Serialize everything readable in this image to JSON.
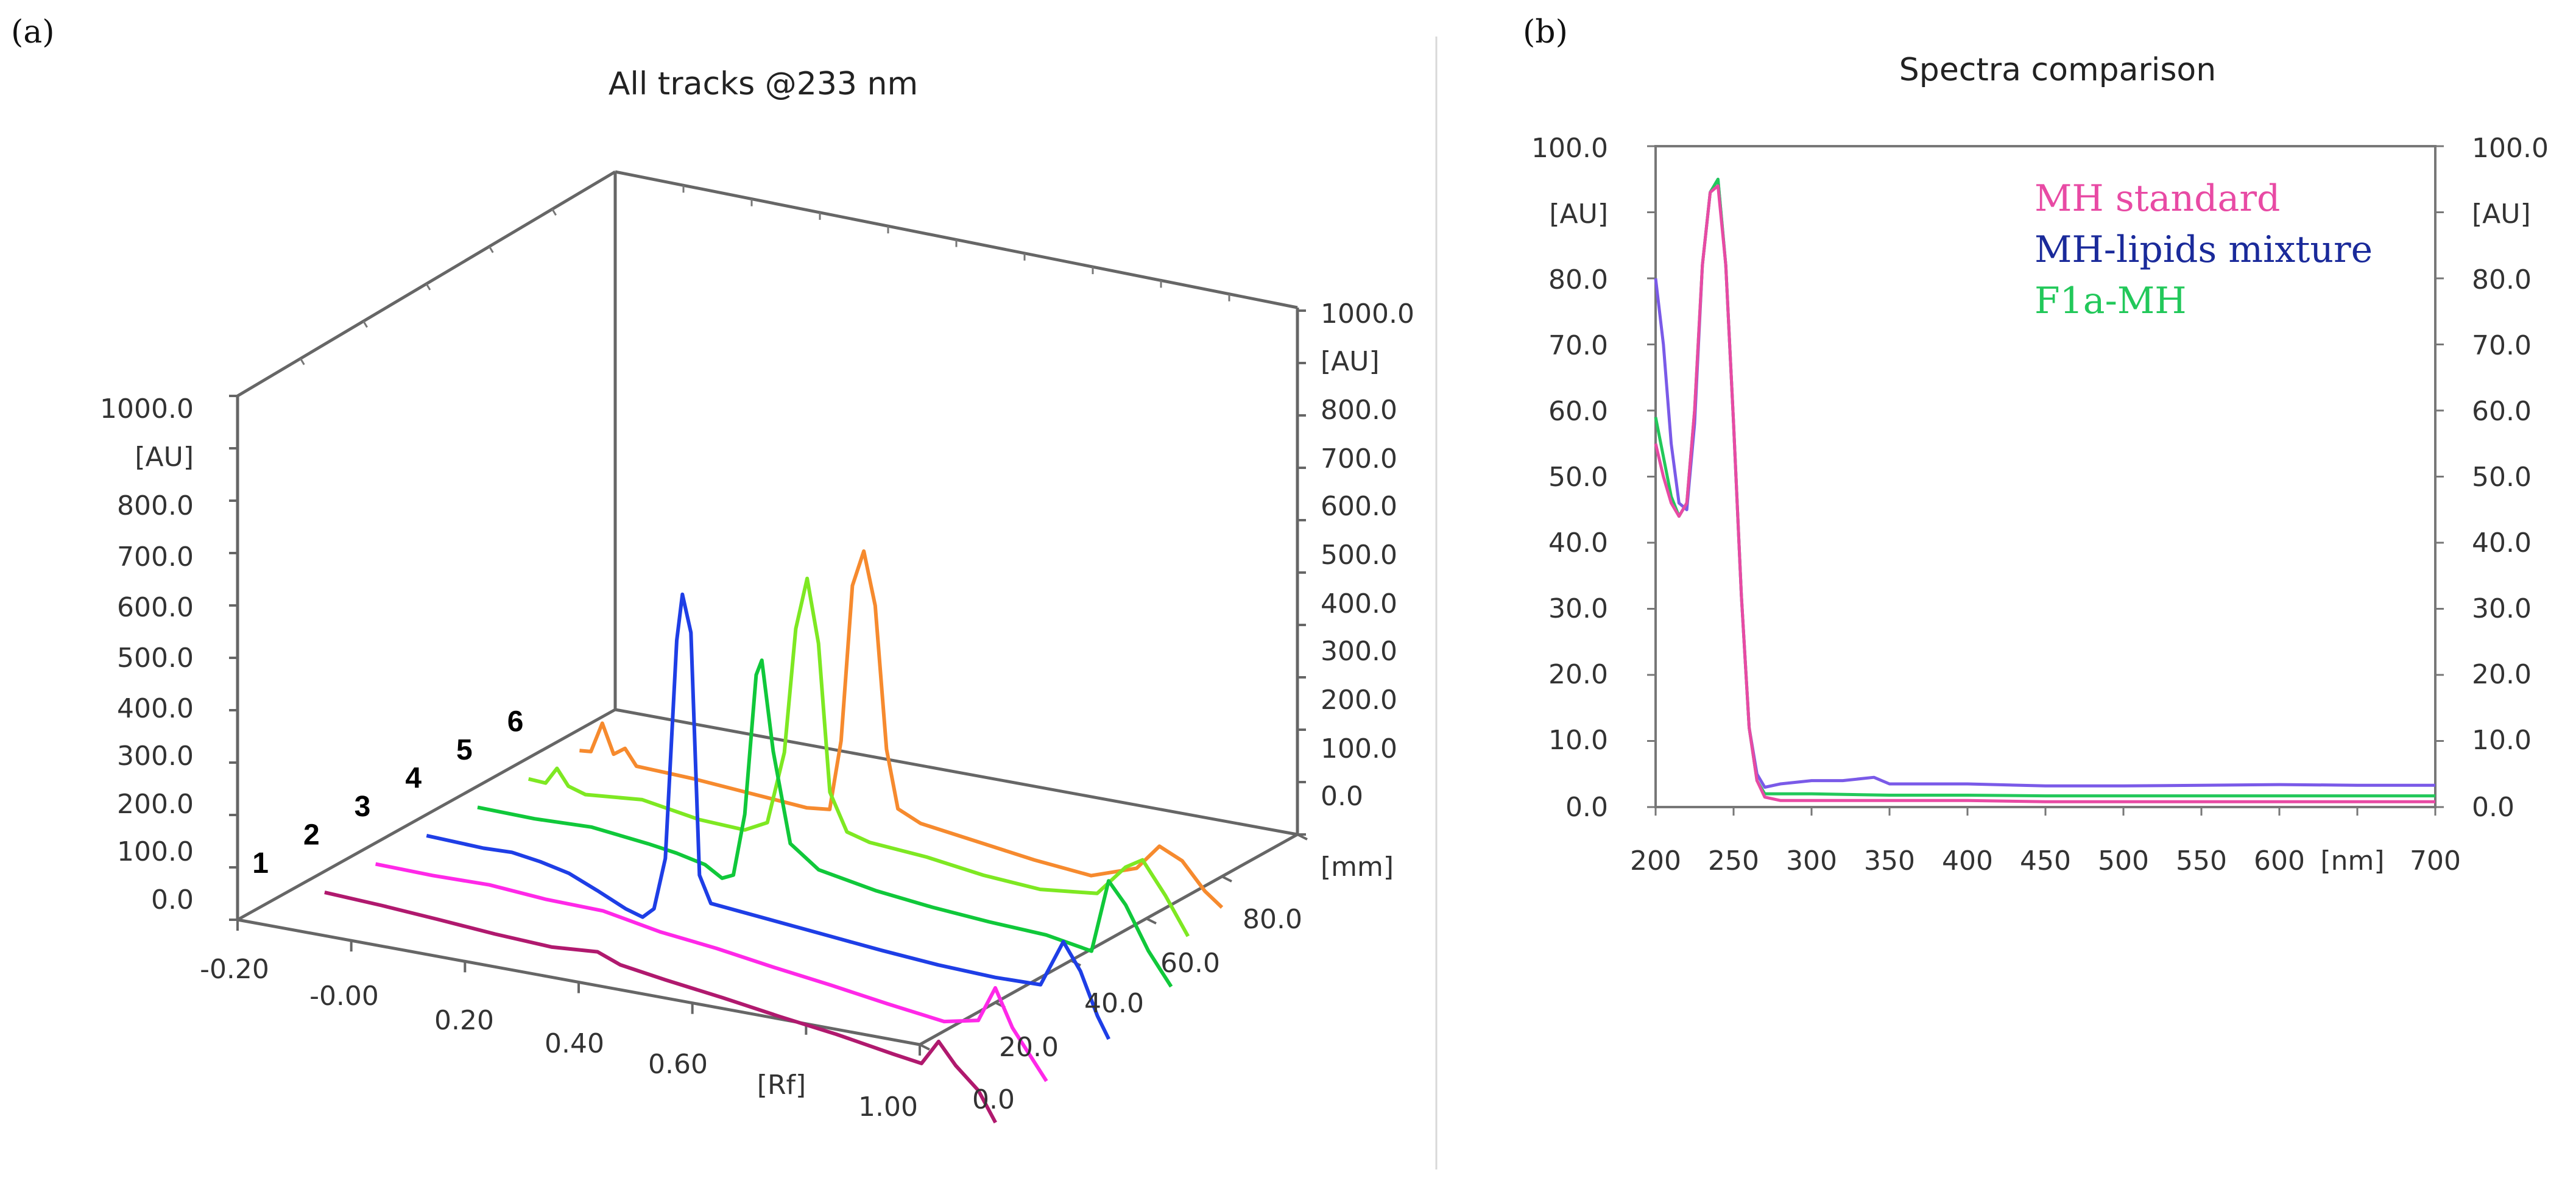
{
  "panel_a": {
    "label": "(a)",
    "chart_data": {
      "type": "line-3d",
      "title": "All tracks @233 nm",
      "rf_ticks": [
        "-0.20",
        "-0.00",
        "0.20",
        "0.40",
        "0.60",
        "1.00"
      ],
      "rf_unit": "[Rf]",
      "rf_range": [
        -0.2,
        1.0
      ],
      "mm_ticks": [
        "0.0",
        "20.0",
        "40.0",
        "60.0",
        "80.0"
      ],
      "mm_unit": "[mm]",
      "mm_range": [
        0,
        100
      ],
      "au_left_ticks": [
        "1000.0",
        "[AU]",
        "800.0",
        "700.0",
        "600.0",
        "500.0",
        "400.0",
        "300.0",
        "200.0",
        "100.0",
        "0.0"
      ],
      "au_right_ticks": [
        "1000.0",
        "[AU]",
        "800.0",
        "700.0",
        "600.0",
        "500.0",
        "400.0",
        "300.0",
        "200.0",
        "100.0",
        "0.0"
      ],
      "au_range": [
        0,
        1000
      ],
      "tracks": [
        {
          "name": "1",
          "color": "#b0196e",
          "points": [
            [
              -0.1,
              40
            ],
            [
              0.0,
              35
            ],
            [
              0.1,
              28
            ],
            [
              0.2,
              20
            ],
            [
              0.3,
              15
            ],
            [
              0.38,
              22
            ],
            [
              0.42,
              5
            ],
            [
              0.5,
              -8
            ],
            [
              0.6,
              -22
            ],
            [
              0.7,
              -38
            ],
            [
              0.8,
              -52
            ],
            [
              0.9,
              -70
            ],
            [
              0.95,
              -78
            ],
            [
              0.98,
              -30
            ],
            [
              1.01,
              -70
            ],
            [
              1.05,
              -110
            ],
            [
              1.08,
              -165
            ]
          ]
        },
        {
          "name": "2",
          "color": "#ff28e8",
          "points": [
            [
              -0.1,
              40
            ],
            [
              0.0,
              38
            ],
            [
              0.1,
              40
            ],
            [
              0.2,
              32
            ],
            [
              0.3,
              30
            ],
            [
              0.4,
              10
            ],
            [
              0.5,
              -2
            ],
            [
              0.6,
              -18
            ],
            [
              0.7,
              -32
            ],
            [
              0.8,
              -48
            ],
            [
              0.9,
              -62
            ],
            [
              0.96,
              -48
            ],
            [
              0.99,
              20
            ],
            [
              1.02,
              -50
            ],
            [
              1.05,
              -95
            ],
            [
              1.08,
              -140
            ]
          ]
        },
        {
          "name": "3",
          "color": "#1e3ee6",
          "points": [
            [
              -0.1,
              40
            ],
            [
              0.0,
              36
            ],
            [
              0.05,
              38
            ],
            [
              0.1,
              30
            ],
            [
              0.15,
              18
            ],
            [
              0.2,
              -5
            ],
            [
              0.25,
              -30
            ],
            [
              0.28,
              -40
            ],
            [
              0.3,
              -20
            ],
            [
              0.32,
              80
            ],
            [
              0.34,
              500
            ],
            [
              0.35,
              590
            ],
            [
              0.365,
              520
            ],
            [
              0.38,
              60
            ],
            [
              0.4,
              10
            ],
            [
              0.5,
              0
            ],
            [
              0.6,
              -10
            ],
            [
              0.7,
              -20
            ],
            [
              0.8,
              -28
            ],
            [
              0.9,
              -32
            ],
            [
              0.98,
              -30
            ],
            [
              1.02,
              60
            ],
            [
              1.05,
              10
            ],
            [
              1.08,
              -70
            ],
            [
              1.1,
              -110
            ]
          ]
        },
        {
          "name": "4",
          "color": "#10c83a",
          "points": [
            [
              -0.1,
              40
            ],
            [
              0.0,
              38
            ],
            [
              0.1,
              42
            ],
            [
              0.2,
              30
            ],
            [
              0.25,
              22
            ],
            [
              0.3,
              10
            ],
            [
              0.33,
              -10
            ],
            [
              0.35,
              0
            ],
            [
              0.37,
              120
            ],
            [
              0.39,
              390
            ],
            [
              0.4,
              420
            ],
            [
              0.42,
              250
            ],
            [
              0.45,
              80
            ],
            [
              0.5,
              40
            ],
            [
              0.6,
              20
            ],
            [
              0.7,
              8
            ],
            [
              0.8,
              0
            ],
            [
              0.9,
              -5
            ],
            [
              0.98,
              -20
            ],
            [
              1.01,
              120
            ],
            [
              1.04,
              80
            ],
            [
              1.08,
              0
            ],
            [
              1.12,
              -60
            ]
          ]
        },
        {
          "name": "5",
          "color": "#7ee822",
          "points": [
            [
              -0.1,
              40
            ],
            [
              -0.07,
              38
            ],
            [
              -0.05,
              70
            ],
            [
              -0.03,
              40
            ],
            [
              0.0,
              30
            ],
            [
              0.1,
              40
            ],
            [
              0.2,
              22
            ],
            [
              0.28,
              18
            ],
            [
              0.32,
              40
            ],
            [
              0.35,
              180
            ],
            [
              0.37,
              420
            ],
            [
              0.39,
              520
            ],
            [
              0.41,
              400
            ],
            [
              0.43,
              120
            ],
            [
              0.46,
              50
            ],
            [
              0.5,
              38
            ],
            [
              0.6,
              30
            ],
            [
              0.7,
              15
            ],
            [
              0.8,
              8
            ],
            [
              0.9,
              20
            ],
            [
              0.95,
              80
            ],
            [
              0.98,
              100
            ],
            [
              1.02,
              40
            ],
            [
              1.06,
              -30
            ]
          ]
        },
        {
          "name": "6",
          "color": "#f68a2e",
          "points": [
            [
              -0.1,
              40
            ],
            [
              -0.08,
              42
            ],
            [
              -0.06,
              100
            ],
            [
              -0.04,
              45
            ],
            [
              -0.02,
              60
            ],
            [
              0.0,
              30
            ],
            [
              0.1,
              26
            ],
            [
              0.2,
              18
            ],
            [
              0.3,
              10
            ],
            [
              0.34,
              15
            ],
            [
              0.36,
              150
            ],
            [
              0.38,
              450
            ],
            [
              0.4,
              520
            ],
            [
              0.42,
              420
            ],
            [
              0.44,
              150
            ],
            [
              0.46,
              40
            ],
            [
              0.5,
              20
            ],
            [
              0.6,
              5
            ],
            [
              0.7,
              -10
            ],
            [
              0.8,
              -20
            ],
            [
              0.88,
              10
            ],
            [
              0.92,
              60
            ],
            [
              0.96,
              40
            ],
            [
              1.0,
              -10
            ],
            [
              1.03,
              -35
            ]
          ]
        }
      ]
    }
  },
  "panel_b": {
    "label": "(b)",
    "chart_data": {
      "type": "line",
      "title": "Spectra comparison",
      "x_ticks": [
        "200",
        "250",
        "300",
        "350",
        "400",
        "450",
        "500",
        "550",
        "600",
        "[nm]",
        "700"
      ],
      "x_range": [
        200,
        700
      ],
      "x_unit": "[nm]",
      "y_left_ticks": [
        "100.0",
        "[AU]",
        "80.0",
        "70.0",
        "60.0",
        "50.0",
        "40.0",
        "30.0",
        "20.0",
        "10.0",
        "0.0"
      ],
      "y_right_ticks": [
        "100.0",
        "[AU]",
        "80.0",
        "70.0",
        "60.0",
        "50.0",
        "40.0",
        "30.0",
        "20.0",
        "10.0",
        "0.0"
      ],
      "y_range": [
        0,
        100
      ],
      "y_unit": "[AU]",
      "series": [
        {
          "name": "MH standard",
          "color": "#e84aa4",
          "points": [
            [
              200,
              55
            ],
            [
              205,
              50
            ],
            [
              210,
              46
            ],
            [
              215,
              44
            ],
            [
              220,
              46
            ],
            [
              225,
              60
            ],
            [
              230,
              82
            ],
            [
              235,
              93
            ],
            [
              240,
              94
            ],
            [
              245,
              82
            ],
            [
              250,
              58
            ],
            [
              255,
              32
            ],
            [
              260,
              12
            ],
            [
              265,
              4
            ],
            [
              270,
              1.5
            ],
            [
              280,
              1
            ],
            [
              300,
              1
            ],
            [
              350,
              1
            ],
            [
              400,
              1
            ],
            [
              450,
              0.8
            ],
            [
              500,
              0.8
            ],
            [
              550,
              0.8
            ],
            [
              600,
              0.8
            ],
            [
              650,
              0.8
            ],
            [
              700,
              0.8
            ]
          ]
        },
        {
          "name": "MH-lipids mixture",
          "color": "#7a5ae8",
          "points": [
            [
              200,
              80
            ],
            [
              205,
              70
            ],
            [
              210,
              55
            ],
            [
              215,
              46
            ],
            [
              220,
              45
            ],
            [
              225,
              58
            ],
            [
              230,
              82
            ],
            [
              235,
              93
            ],
            [
              240,
              95
            ],
            [
              245,
              82
            ],
            [
              250,
              58
            ],
            [
              255,
              32
            ],
            [
              260,
              12
            ],
            [
              265,
              5
            ],
            [
              270,
              3
            ],
            [
              280,
              3.5
            ],
            [
              300,
              4
            ],
            [
              320,
              4
            ],
            [
              340,
              4.5
            ],
            [
              350,
              3.5
            ],
            [
              400,
              3.5
            ],
            [
              450,
              3.2
            ],
            [
              500,
              3.2
            ],
            [
              550,
              3.3
            ],
            [
              600,
              3.4
            ],
            [
              650,
              3.3
            ],
            [
              700,
              3.3
            ]
          ]
        },
        {
          "name": "F1a-MH",
          "color": "#22c85a",
          "points": [
            [
              200,
              59
            ],
            [
              205,
              53
            ],
            [
              210,
              47
            ],
            [
              215,
              44
            ],
            [
              220,
              46
            ],
            [
              225,
              60
            ],
            [
              230,
              82
            ],
            [
              235,
              93
            ],
            [
              240,
              95
            ],
            [
              245,
              82
            ],
            [
              250,
              58
            ],
            [
              255,
              32
            ],
            [
              260,
              12
            ],
            [
              265,
              4
            ],
            [
              270,
              2
            ],
            [
              280,
              2
            ],
            [
              300,
              2
            ],
            [
              350,
              1.8
            ],
            [
              400,
              1.8
            ],
            [
              450,
              1.7
            ],
            [
              500,
              1.7
            ],
            [
              550,
              1.7
            ],
            [
              600,
              1.7
            ],
            [
              650,
              1.7
            ],
            [
              700,
              1.7
            ]
          ]
        }
      ]
    }
  }
}
